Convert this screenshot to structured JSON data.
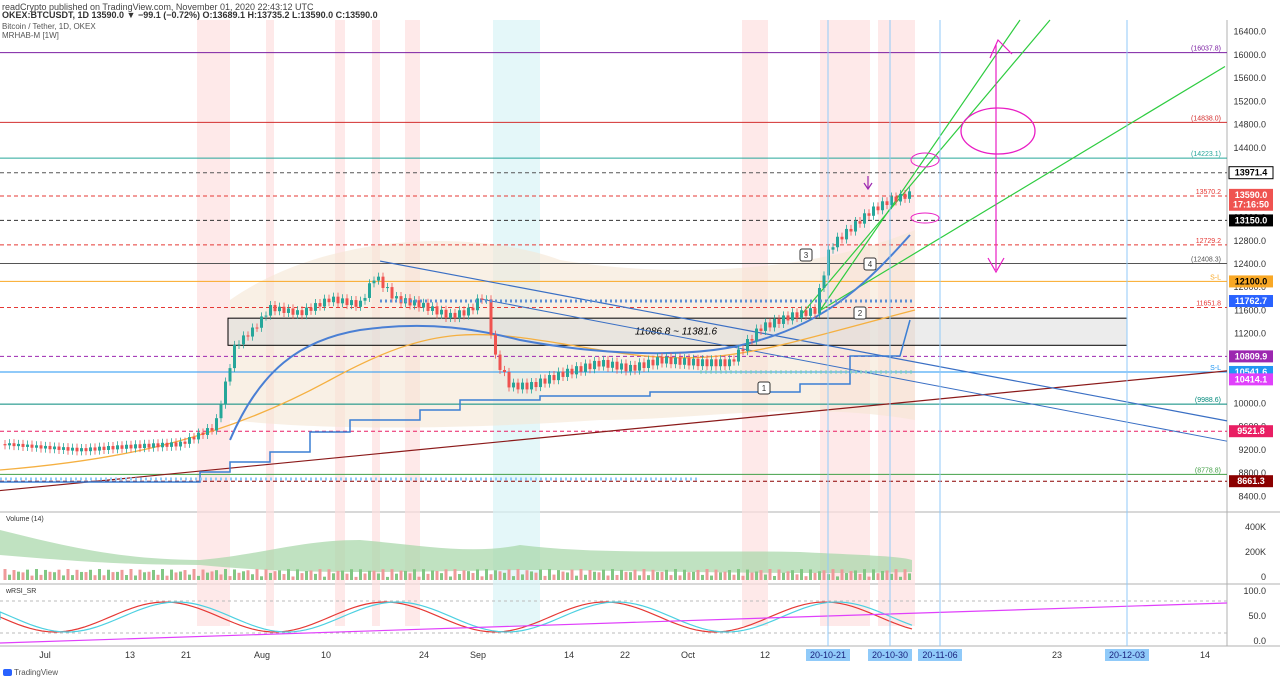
{
  "header": {
    "line1": "readCrypto published on TradingView.com, November 01, 2020 22:43:12 UTC",
    "line2": "OKEX:BTCUSDT, 1D  13590.0  ▼ −99.1 (−0.72%)  O:13689.1  H:13735.2  L:13590.0  C:13590.0",
    "line3": "Bitcoin / Tether, 1D, OKEX",
    "line4": "MRHAB-M [1W]"
  },
  "footer": {
    "watermark": "TradingView"
  },
  "chart_data": [
    {
      "type": "candlestick",
      "pane": "price",
      "symbol": "OKEX:BTCUSDT",
      "timeframe": "1D",
      "ylim": [
        8200,
        16600
      ],
      "yticks": [
        8400,
        8800,
        9200,
        9600,
        10000,
        10400,
        10800,
        11200,
        11600,
        12000,
        12400,
        12800,
        13200,
        13600,
        14000,
        14400,
        14800,
        15200,
        15600,
        16000,
        16400
      ],
      "x_tick_labels": [
        "Jul",
        "13",
        "21",
        "Aug",
        "10",
        "24",
        "Sep",
        "14",
        "22",
        "Oct",
        "12",
        "23",
        "14"
      ],
      "date_markers": [
        "20-10-21",
        "20-10-30",
        "20-11-06",
        "20-12-03"
      ],
      "price_tags": [
        {
          "value": 13971.4,
          "bg": "#ffffff",
          "fg": "#000000",
          "border": "#000000"
        },
        {
          "value": 13590.0,
          "bg": "#ef5350",
          "fg": "#ffffff"
        },
        {
          "value": "17:16:50",
          "bg": "#ef5350",
          "fg": "#ffffff",
          "y": 13420
        },
        {
          "value": 13150.0,
          "bg": "#000000",
          "fg": "#ffffff"
        },
        {
          "value": 12100.0,
          "bg": "#f9a825",
          "fg": "#000000"
        },
        {
          "value": 11762.7,
          "bg": "#2962ff",
          "fg": "#ffffff"
        },
        {
          "value": 10809.9,
          "bg": "#9c27b0",
          "fg": "#ffffff"
        },
        {
          "value": 10541.6,
          "bg": "#2196f3",
          "fg": "#ffffff"
        },
        {
          "value": 10414.1,
          "bg": "#e040fb",
          "fg": "#ffffff"
        },
        {
          "value": 9521.8,
          "bg": "#e91e63",
          "fg": "#ffffff"
        },
        {
          "value": 8661.3,
          "bg": "#8b0000",
          "fg": "#ffffff"
        }
      ],
      "horizontal_levels": [
        {
          "value": 16037.8,
          "color": "#7b1fa2",
          "label": "(16037.8)"
        },
        {
          "value": 14838.0,
          "color": "#d32f2f",
          "label": "(14838.0)"
        },
        {
          "value": 14223.1,
          "color": "#26a69a",
          "label": "(14223.1)"
        },
        {
          "value": 13971.4,
          "color": "#555555",
          "dash": true
        },
        {
          "value": 13570.2,
          "color": "#e53935",
          "dash": true,
          "label": "13570.2"
        },
        {
          "value": 13150.0,
          "color": "#333333",
          "dash": true
        },
        {
          "value": 12729.2,
          "color": "#e53935",
          "dash": true,
          "label": "12729.2"
        },
        {
          "value": 12408.3,
          "color": "#555555",
          "label": "(12408.3)"
        },
        {
          "value": 12100.0,
          "color": "#f9a825",
          "label": "S-L"
        },
        {
          "value": 11651.8,
          "color": "#e53935",
          "dash": true,
          "label": "11651.8"
        },
        {
          "value": 10809.9,
          "color": "#9c27b0",
          "dash": true
        },
        {
          "value": 10541.6,
          "color": "#2196f3",
          "label": "S-L"
        },
        {
          "value": 9988.6,
          "color": "#00897b",
          "label": "(9988.6)"
        },
        {
          "value": 9521.8,
          "color": "#e91e63",
          "dash": true
        },
        {
          "value": 8778.8,
          "color": "#43a047",
          "label": "(8778.8)"
        },
        {
          "value": 8661.3,
          "color": "#8b0000",
          "dash": true
        }
      ],
      "range_box_label": "11086.8 ~ 11381.6",
      "annotations": [
        "1",
        "2",
        "3",
        "4"
      ],
      "ohlc_last": {
        "open": 13689.1,
        "high": 13735.2,
        "low": 13590.0,
        "close": 13590.0,
        "change": -99.1,
        "change_pct": -0.72
      }
    },
    {
      "type": "area",
      "pane": "volume",
      "title": "Volume (14)",
      "yticks": [
        "400K",
        "200K",
        "0"
      ]
    },
    {
      "type": "line",
      "pane": "oscillator",
      "title": "wRSI_SR",
      "yticks": [
        "100.0",
        "50.0",
        "0.0"
      ]
    }
  ]
}
